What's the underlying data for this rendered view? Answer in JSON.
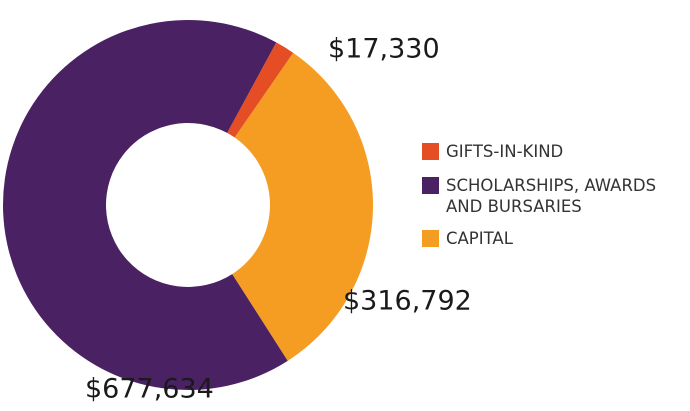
{
  "chart_data": {
    "type": "pie",
    "categories": [
      "GIFTS-IN-KIND",
      "SCHOLARSHIPS, AWARDS AND BURSARIES",
      "CAPITAL"
    ],
    "values": [
      17330,
      677634,
      316792
    ],
    "value_labels": [
      "$17,330",
      "$677,634",
      "$316,792"
    ],
    "colors": [
      "#e54e25",
      "#4a2162",
      "#f59d22"
    ],
    "donut": true
  }
}
